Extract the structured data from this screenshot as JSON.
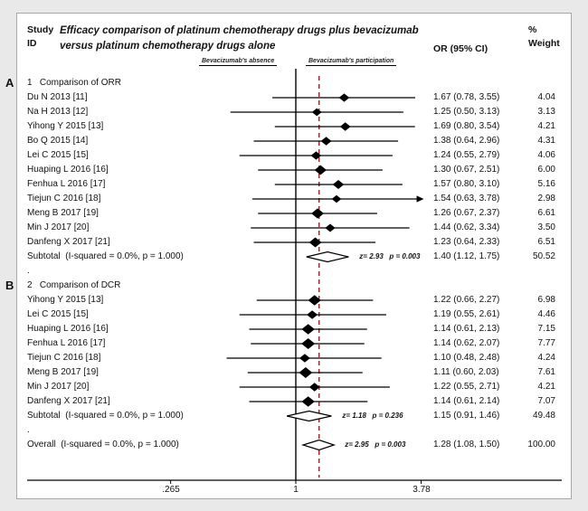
{
  "header": {
    "study_id": "Study\nID",
    "title": "Efficacy comparison of platinum chemotherapy drugs plus bevacizumab\nversus platinum chemotherapy drugs alone",
    "or_ci": "OR (95% CI)",
    "weight": "%\nWeight"
  },
  "axis_annotations": {
    "left": "Bevacizumab's absence",
    "right": "Bevacizumab's participation"
  },
  "panel_labels": {
    "a": "A",
    "b": "B"
  },
  "chart_data": {
    "type": "forest",
    "x_scale": "log",
    "x_ticks": [
      ".265",
      "1",
      "3.78"
    ],
    "x_range": [
      0.265,
      3.78
    ],
    "null_line": 1,
    "overall_dashed_line": 1.28,
    "dashed_line_color": "#8b2626",
    "sections": [
      {
        "panel": "A",
        "heading": "1   Comparison of ORR",
        "studies": [
          {
            "label": "Du N 2013 [11]",
            "or": 1.67,
            "low": 0.78,
            "high": 3.55,
            "or_text": "1.67 (0.78, 3.55)",
            "weight": "4.04"
          },
          {
            "label": "Na H 2013 [12]",
            "or": 1.25,
            "low": 0.5,
            "high": 3.13,
            "or_text": "1.25 (0.50, 3.13)",
            "weight": "3.13"
          },
          {
            "label": "Yihong Y 2015 [13]",
            "or": 1.69,
            "low": 0.8,
            "high": 3.54,
            "or_text": "1.69 (0.80, 3.54)",
            "weight": "4.21"
          },
          {
            "label": "Bo Q 2015 [14]",
            "or": 1.38,
            "low": 0.64,
            "high": 2.96,
            "or_text": "1.38 (0.64, 2.96)",
            "weight": "4.31"
          },
          {
            "label": "Lei C 2015 [15]",
            "or": 1.24,
            "low": 0.55,
            "high": 2.79,
            "or_text": "1.24 (0.55, 2.79)",
            "weight": "4.06"
          },
          {
            "label": "Huaping L 2016 [16]",
            "or": 1.3,
            "low": 0.67,
            "high": 2.51,
            "or_text": "1.30 (0.67, 2.51)",
            "weight": "6.00"
          },
          {
            "label": "Fenhua L 2016 [17]",
            "or": 1.57,
            "low": 0.8,
            "high": 3.1,
            "or_text": "1.57 (0.80, 3.10)",
            "weight": "5.16"
          },
          {
            "label": "Tiejun C 2016 [18]",
            "or": 1.54,
            "low": 0.63,
            "high": 3.78,
            "or_text": "1.54 (0.63, 3.78)",
            "weight": "2.98",
            "arrow_high": true
          },
          {
            "label": "Meng B 2017 [19]",
            "or": 1.26,
            "low": 0.67,
            "high": 2.37,
            "or_text": "1.26 (0.67, 2.37)",
            "weight": "6.61"
          },
          {
            "label": "Min J 2017 [20]",
            "or": 1.44,
            "low": 0.62,
            "high": 3.34,
            "or_text": "1.44 (0.62, 3.34)",
            "weight": "3.50"
          },
          {
            "label": "Danfeng X 2017 [21]",
            "or": 1.23,
            "low": 0.64,
            "high": 2.33,
            "or_text": "1.23 (0.64, 2.33)",
            "weight": "6.51"
          }
        ],
        "subtotal": {
          "label": "Subtotal  (I-squared = 0.0%, p = 1.000)",
          "or": 1.4,
          "low": 1.12,
          "high": 1.75,
          "or_text": "1.40 (1.12, 1.75)",
          "weight": "50.52",
          "note": "z= 2.93   p = 0.003"
        },
        "spacer": "."
      },
      {
        "panel": "B",
        "heading": "2   Comparison of DCR",
        "studies": [
          {
            "label": "Yihong Y 2015 [13]",
            "or": 1.22,
            "low": 0.66,
            "high": 2.27,
            "or_text": "1.22 (0.66, 2.27)",
            "weight": "6.98"
          },
          {
            "label": "Lei C 2015 [15]",
            "or": 1.19,
            "low": 0.55,
            "high": 2.61,
            "or_text": "1.19 (0.55, 2.61)",
            "weight": "4.46"
          },
          {
            "label": "Huaping L 2016 [16]",
            "or": 1.14,
            "low": 0.61,
            "high": 2.13,
            "or_text": "1.14 (0.61, 2.13)",
            "weight": "7.15"
          },
          {
            "label": "Fenhua L 2016 [17]",
            "or": 1.14,
            "low": 0.62,
            "high": 2.07,
            "or_text": "1.14 (0.62, 2.07)",
            "weight": "7.77"
          },
          {
            "label": "Tiejun C 2016 [18]",
            "or": 1.1,
            "low": 0.48,
            "high": 2.48,
            "or_text": "1.10 (0.48, 2.48)",
            "weight": "4.24"
          },
          {
            "label": "Meng B 2017 [19]",
            "or": 1.11,
            "low": 0.6,
            "high": 2.03,
            "or_text": "1.11 (0.60, 2.03)",
            "weight": "7.61"
          },
          {
            "label": "Min J 2017 [20]",
            "or": 1.22,
            "low": 0.55,
            "high": 2.71,
            "or_text": "1.22 (0.55, 2.71)",
            "weight": "4.21"
          },
          {
            "label": "Danfeng X 2017 [21]",
            "or": 1.14,
            "low": 0.61,
            "high": 2.14,
            "or_text": "1.14 (0.61, 2.14)",
            "weight": "7.07"
          }
        ],
        "subtotal": {
          "label": "Subtotal  (I-squared = 0.0%, p = 1.000)",
          "or": 1.15,
          "low": 0.91,
          "high": 1.46,
          "or_text": "1.15 (0.91, 1.46)",
          "weight": "49.48",
          "note": "z= 1.18   p = 0.236"
        },
        "spacer": "."
      }
    ],
    "overall": {
      "label": "Overall  (I-squared = 0.0%, p = 1.000)",
      "or": 1.28,
      "low": 1.08,
      "high": 1.5,
      "or_text": "1.28 (1.08, 1.50)",
      "weight": "100.00",
      "note": "z= 2.95   p = 0.003"
    }
  }
}
